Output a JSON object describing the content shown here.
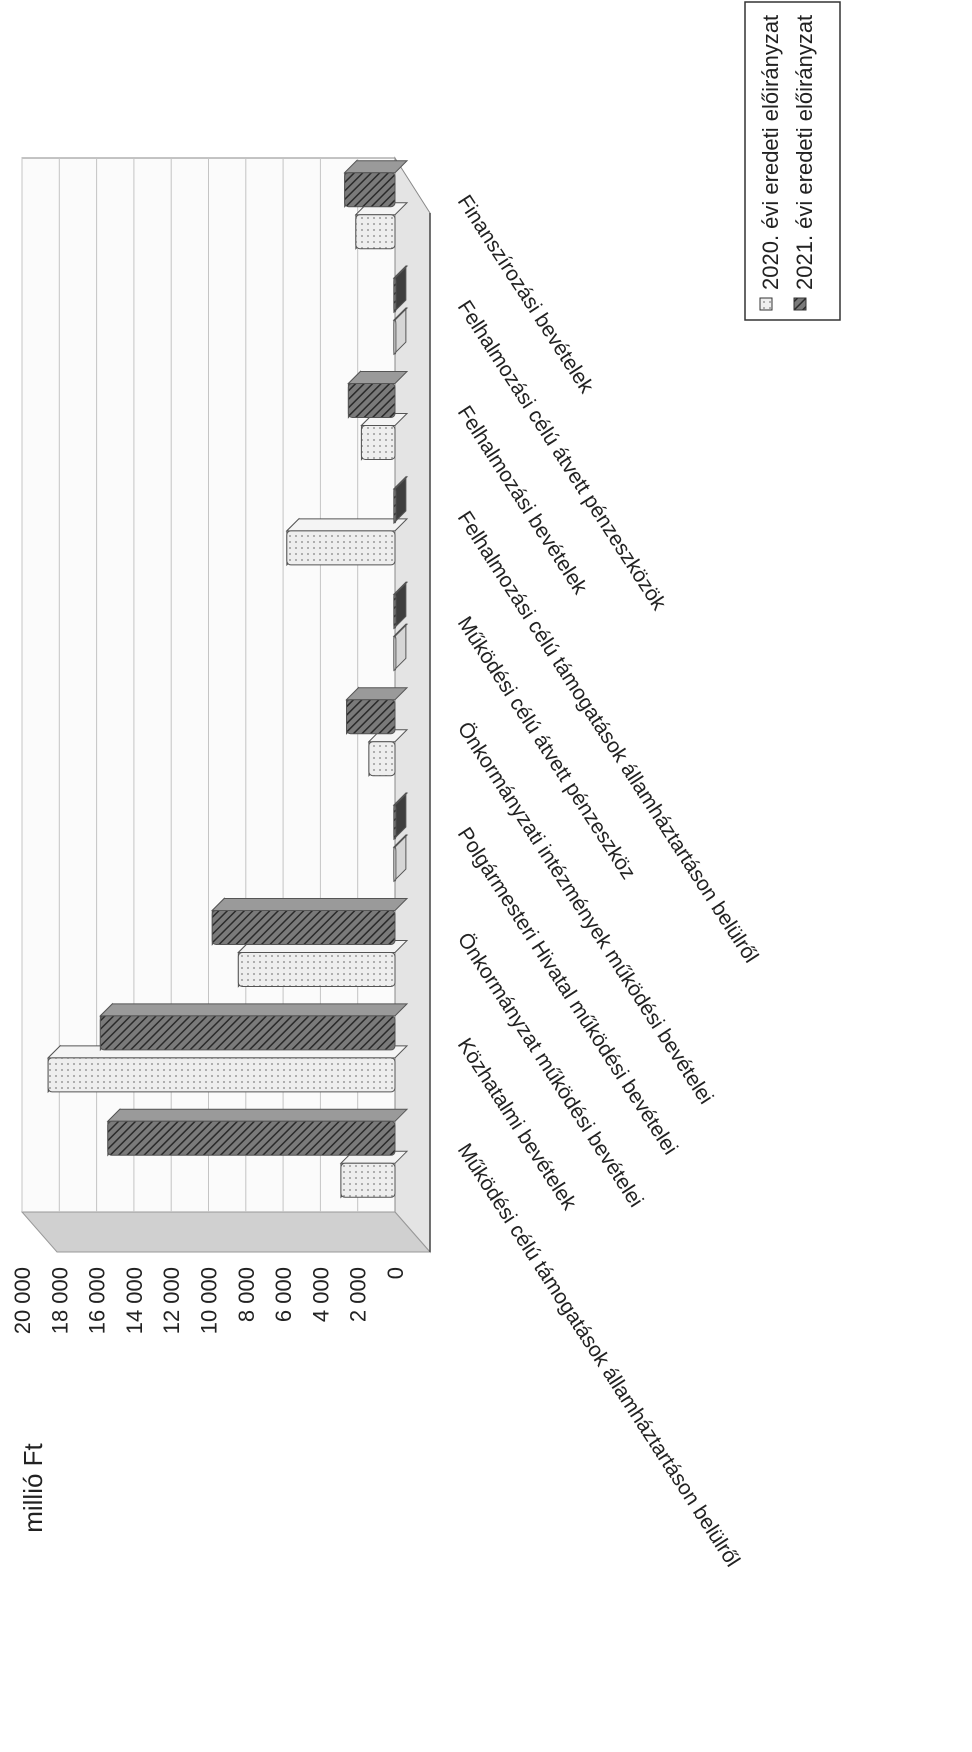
{
  "chart_data": {
    "type": "bar",
    "unit_label": "millió Ft",
    "categories": [
      "Működési célú támogatások államháztartáson belülről",
      "Közhatalmi bevételek",
      "Önkormányzat működési bevételei",
      "Polgármesteri Hivatal működési bevételei",
      "Önkormányzati intézmények működési bevételei",
      "Működési célú átvett pénzeszköz",
      "Felhalmozási célú támogatások államháztartáson belülről",
      "Felhalmozási bevételek",
      "Felhalmozási célú átvett pénzeszközök",
      "Finanszírozási bevételek"
    ],
    "series": [
      {
        "name": "2020. évi eredeti előirányzat",
        "values": [
          2900,
          18600,
          8400,
          60,
          1400,
          60,
          5800,
          1800,
          60,
          2100
        ],
        "color": "#e6e6e6"
      },
      {
        "name": "2021. évi eredeti előirányzat",
        "values": [
          15400,
          15800,
          9800,
          60,
          2600,
          60,
          60,
          2500,
          60,
          2700
        ],
        "color": "#555555"
      }
    ],
    "y_ticks": [
      "0",
      "2 000",
      "4 000",
      "6 000",
      "8 000",
      "10 000",
      "12 000",
      "14 000",
      "16 000",
      "18 000",
      "20 000"
    ],
    "ylim": [
      0,
      20000
    ],
    "grid": true,
    "legend_position": "top-right",
    "orientation": "rotated 90° (page viewed sideways)"
  }
}
